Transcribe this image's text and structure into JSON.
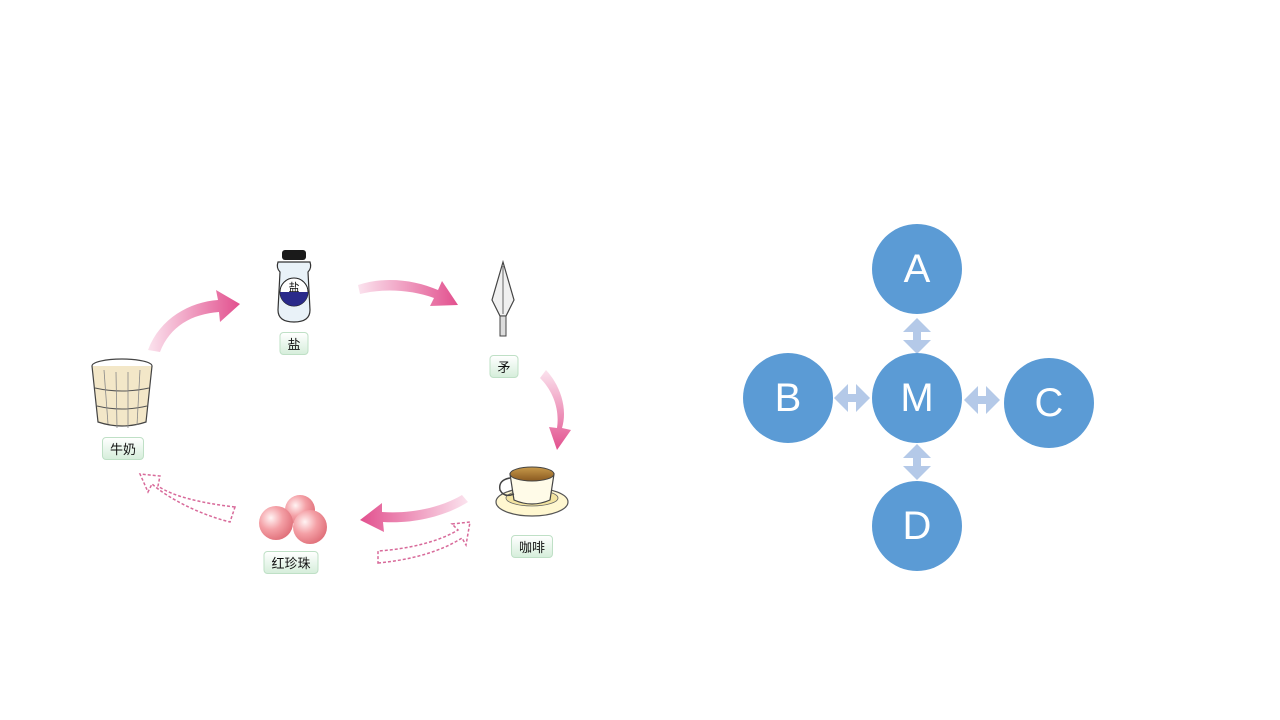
{
  "cycle": {
    "salt": "盐",
    "spear": "矛",
    "coffee": "咖啡",
    "pearls": "红珍珠",
    "milk": "牛奶",
    "salt_jar_text": "盐"
  },
  "hub": {
    "center": "M",
    "top": "A",
    "left": "B",
    "right": "C",
    "bottom": "D"
  },
  "colors": {
    "arrow_pink": "#e0609a",
    "dashed_pink": "#d86a9a",
    "circle_blue": "#5b9bd5",
    "connector_blue": "#b4c9e8"
  }
}
